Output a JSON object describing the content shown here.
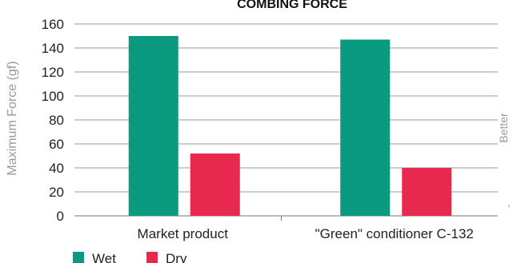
{
  "chart_data": {
    "type": "bar",
    "title": "COMBING FORCE",
    "ylabel": "Maximum Force (gf)",
    "xlabel": "",
    "side_label": "Better",
    "side_mark": ",",
    "categories": [
      "Market product",
      "\"Green\" conditioner C-132"
    ],
    "series": [
      {
        "name": "Wet",
        "color": "#0a9a7f",
        "values": [
          150,
          147
        ]
      },
      {
        "name": "Dry",
        "color": "#e8294f",
        "values": [
          52,
          40
        ]
      }
    ],
    "ylim": [
      0,
      160
    ],
    "yticks": [
      0,
      20,
      40,
      60,
      80,
      100,
      120,
      140,
      160
    ],
    "grid": true,
    "legend_position": "bottom-left"
  }
}
